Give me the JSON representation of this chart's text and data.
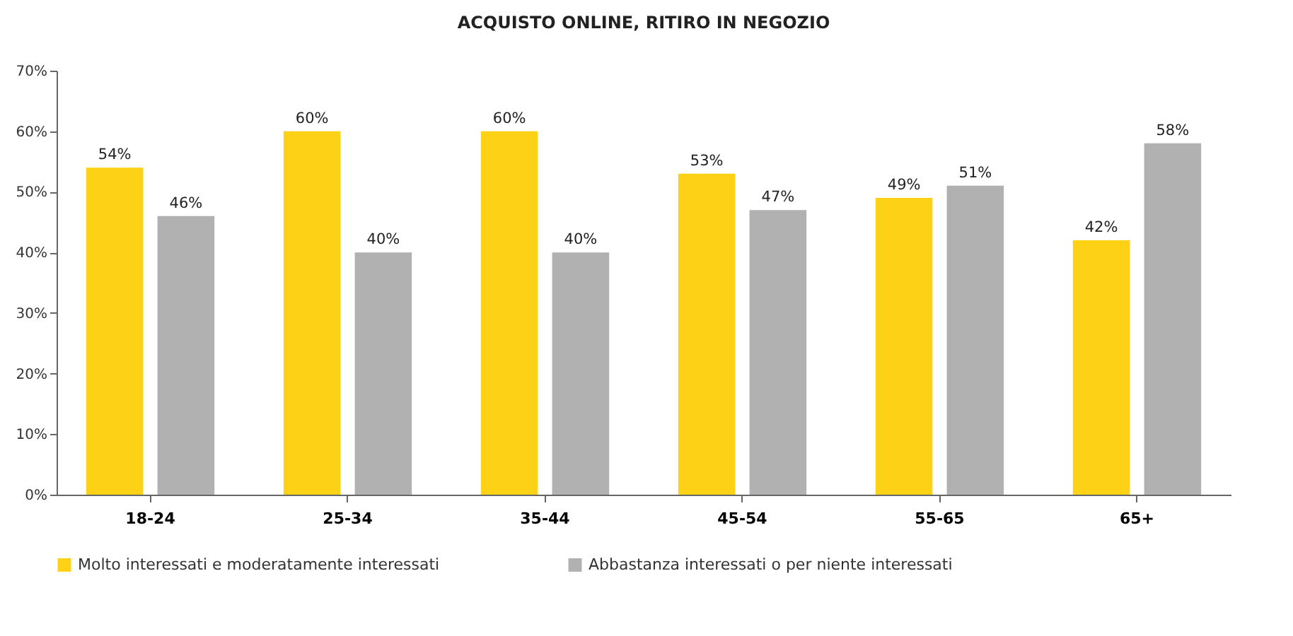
{
  "chart_data": {
    "type": "bar",
    "title": "ACQUISTO ONLINE, RITIRO IN NEGOZIO",
    "categories": [
      "18-24",
      "25-34",
      "35-44",
      "45-54",
      "55-65",
      "65+"
    ],
    "series": [
      {
        "name": "Molto interessati e moderatamente interessati",
        "color": "#fcd116",
        "values": [
          54,
          60,
          60,
          53,
          49,
          42
        ],
        "value_labels": [
          "54%",
          "60%",
          "60%",
          "53%",
          "49%",
          "42%"
        ]
      },
      {
        "name": "Abbastanza interessati o per niente interessati",
        "color": "#b1b1b1",
        "values": [
          46,
          40,
          40,
          47,
          51,
          58
        ],
        "value_labels": [
          "46%",
          "40%",
          "40%",
          "47%",
          "51%",
          "58%"
        ]
      }
    ],
    "ylim": [
      0,
      70
    ],
    "yticks": [
      {
        "value": 0,
        "label": "0%"
      },
      {
        "value": 10,
        "label": "10%"
      },
      {
        "value": 20,
        "label": "20%"
      },
      {
        "value": 30,
        "label": "30%"
      },
      {
        "value": 40,
        "label": "40%"
      },
      {
        "value": 50,
        "label": "50%"
      },
      {
        "value": 60,
        "label": "60%"
      },
      {
        "value": 70,
        "label": "70%"
      }
    ],
    "grid": false,
    "legend": "bottom"
  }
}
